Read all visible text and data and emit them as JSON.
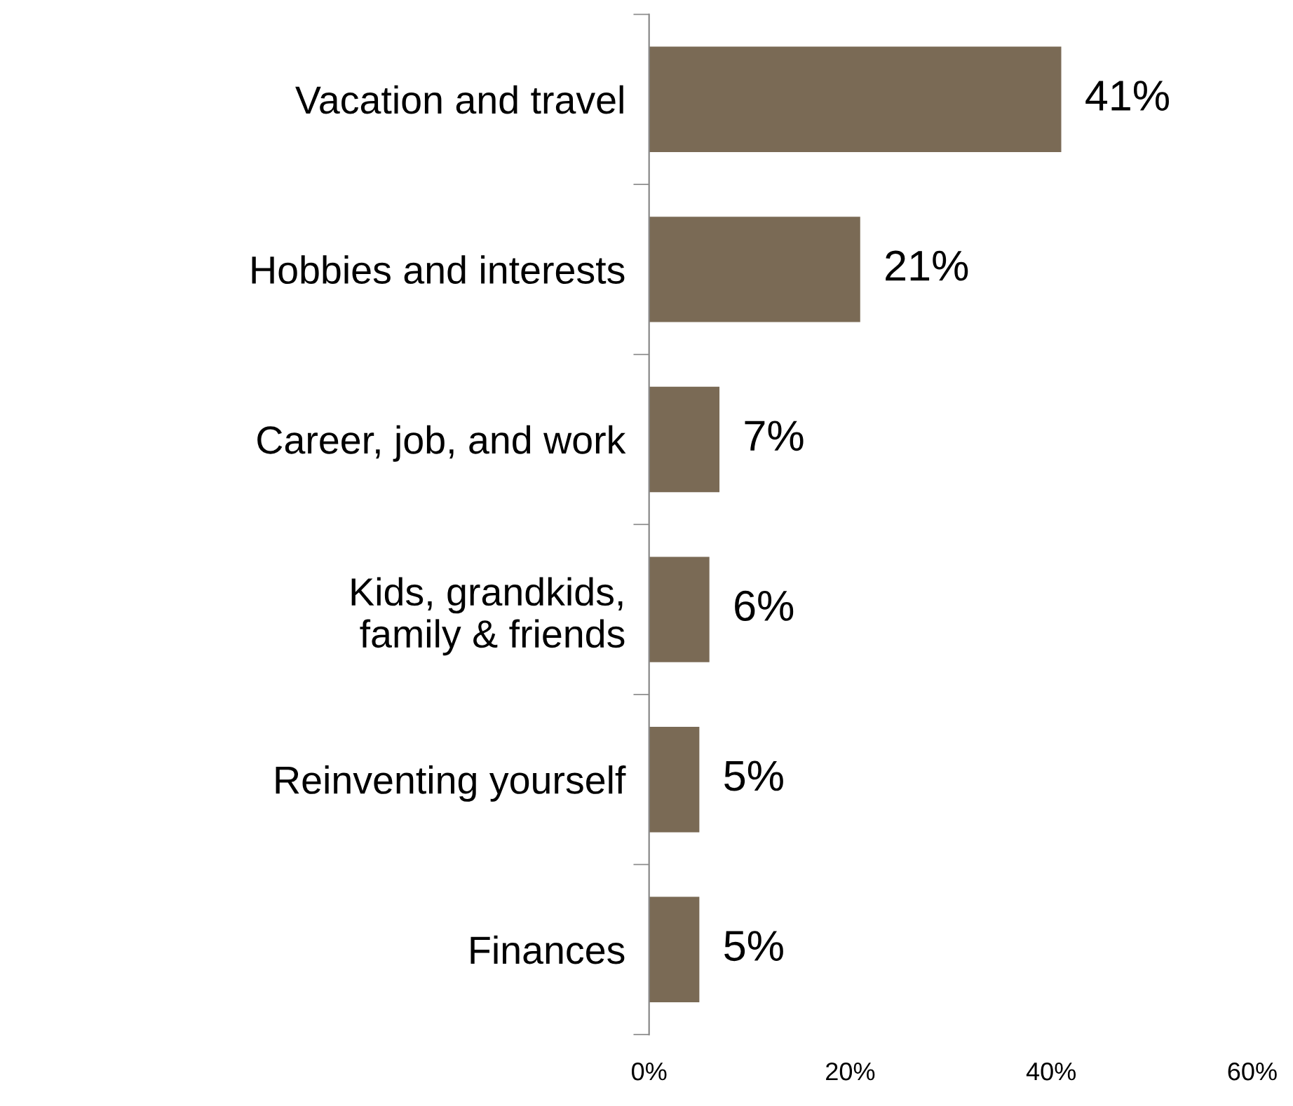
{
  "chart_data": {
    "type": "bar",
    "orientation": "horizontal",
    "categories": [
      "Vacation and travel",
      "Hobbies and interests",
      "Career, job, and work",
      "Kids, grandkids,\nfamily & friends",
      "Reinventing yourself",
      "Finances"
    ],
    "values": [
      41,
      21,
      7,
      6,
      5,
      5
    ],
    "color": "#7a6a55",
    "value_labels": [
      "41%",
      "21%",
      "7%",
      "6%",
      "5%",
      "5%"
    ],
    "xlim": [
      0,
      60
    ],
    "xticks": [
      {
        "value": 0,
        "label": "0%"
      },
      {
        "value": 20,
        "label": "20%"
      },
      {
        "value": 40,
        "label": "40%"
      },
      {
        "value": 60,
        "label": "60%"
      }
    ],
    "grid": false,
    "legend": false
  }
}
